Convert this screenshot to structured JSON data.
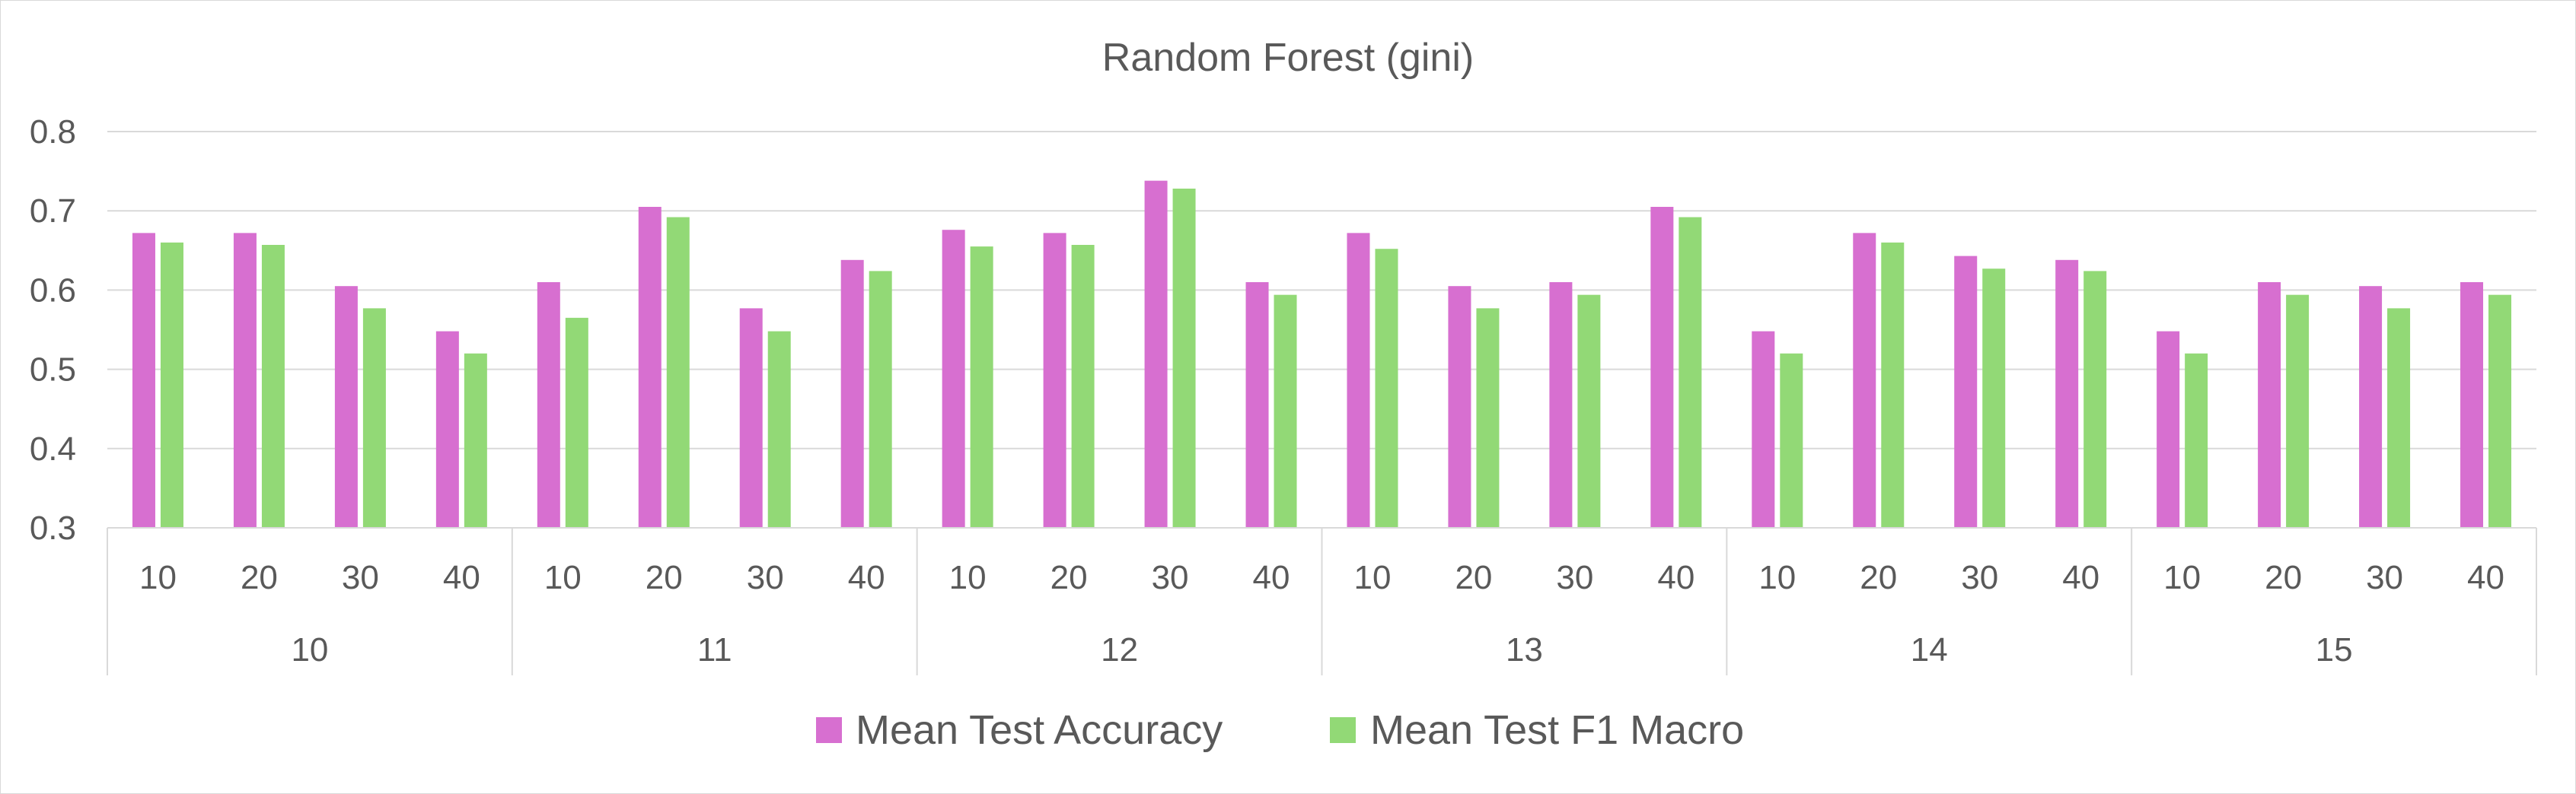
{
  "chart_data": {
    "type": "bar",
    "title": "Random Forest (gini)",
    "xlabel": "",
    "ylabel": "",
    "ylim": [
      0.3,
      0.8
    ],
    "yticks": [
      "0.3",
      "0.4",
      "0.5",
      "0.6",
      "0.7",
      "0.8"
    ],
    "grid": true,
    "legend_position": "bottom",
    "groups": [
      "10",
      "11",
      "12",
      "13",
      "14",
      "15"
    ],
    "subcategories": [
      "10",
      "20",
      "30",
      "40"
    ],
    "series": [
      {
        "name": "Mean Test Accuracy",
        "color": "#d76fd0",
        "values": [
          0.672,
          0.672,
          0.605,
          0.548,
          0.61,
          0.705,
          0.577,
          0.638,
          0.676,
          0.672,
          0.738,
          0.61,
          0.672,
          0.605,
          0.61,
          0.705,
          0.548,
          0.672,
          0.643,
          0.638,
          0.548,
          0.61,
          0.605,
          0.61
        ]
      },
      {
        "name": "Mean Test F1 Macro",
        "color": "#92d976",
        "values": [
          0.66,
          0.657,
          0.577,
          0.52,
          0.565,
          0.692,
          0.548,
          0.624,
          0.655,
          0.657,
          0.728,
          0.594,
          0.652,
          0.577,
          0.594,
          0.692,
          0.52,
          0.66,
          0.627,
          0.624,
          0.52,
          0.594,
          0.577,
          0.594
        ]
      }
    ]
  }
}
